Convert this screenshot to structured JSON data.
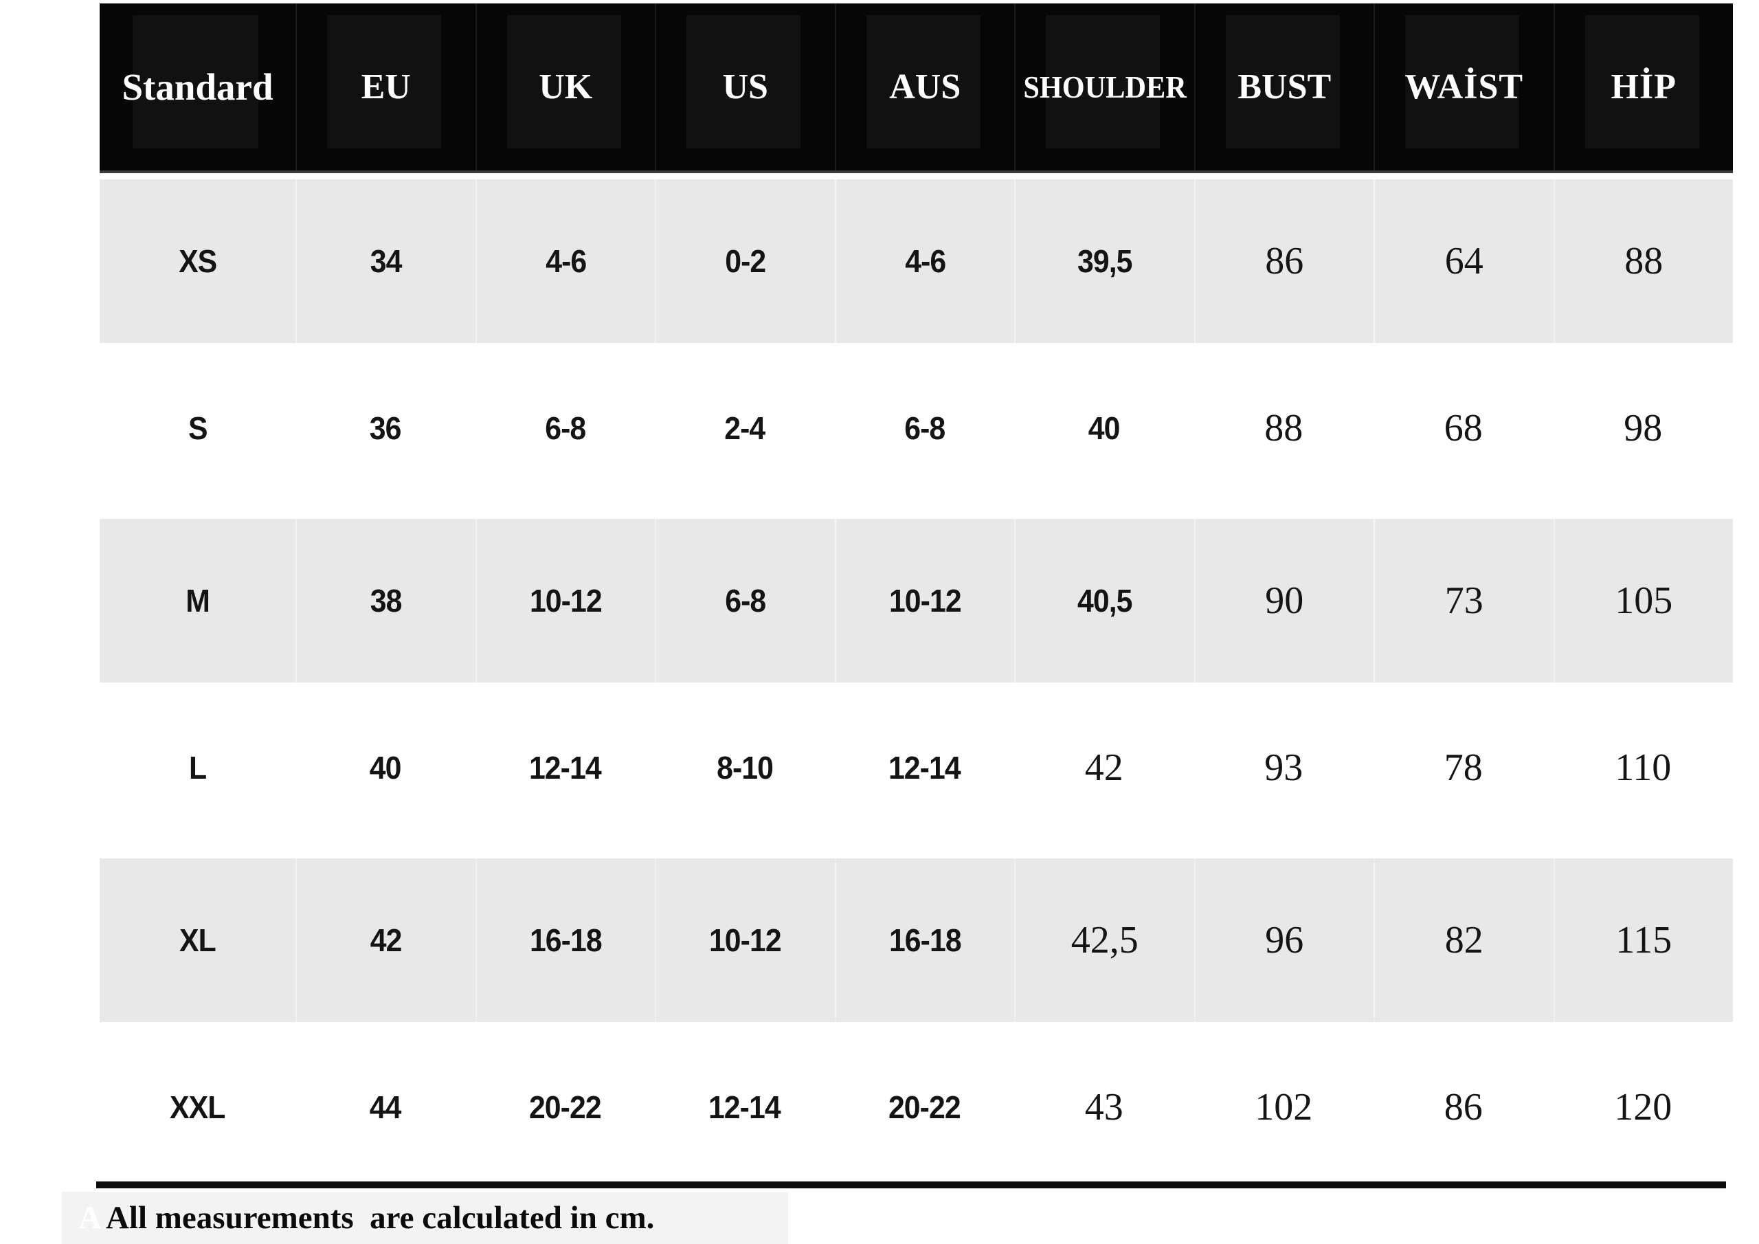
{
  "chart_data": {
    "type": "table",
    "columns": [
      "Standard",
      "EU",
      "UK",
      "US",
      "AUS",
      "SHOULDER",
      "BUST",
      "WAİST",
      "HİP"
    ],
    "rows": [
      [
        "XS",
        "34",
        "4-6",
        "0-2",
        "4-6",
        "39,5",
        "86",
        "64",
        "88"
      ],
      [
        "S",
        "36",
        "6-8",
        "2-4",
        "6-8",
        "40",
        "88",
        "68",
        "98"
      ],
      [
        "M",
        "38",
        "10-12",
        "6-8",
        "10-12",
        "40,5",
        "90",
        "73",
        "105"
      ],
      [
        "L",
        "40",
        "12-14",
        "8-10",
        "12-14",
        "42",
        "93",
        "78",
        "110"
      ],
      [
        "XL",
        "42",
        "16-18",
        "10-12",
        "16-18",
        "42,5",
        "96",
        "82",
        "115"
      ],
      [
        "XXL",
        "44",
        "20-22",
        "12-14",
        "20-22",
        "43",
        "102",
        "86",
        "120"
      ]
    ],
    "serif_from_col": [
      6,
      6,
      6,
      5,
      5,
      5
    ],
    "row_shaded": [
      true,
      false,
      true,
      false,
      true,
      false
    ],
    "footnote": "All measurements  are calculated in cm.",
    "footnote_ghost": "A",
    "layout_hints": {
      "header_style": "black band, white bold serif labels",
      "shaded_row_color": "#e8e8e8",
      "units": "cm"
    }
  },
  "colors": {
    "header_bg": "#060606",
    "header_text": "#ffffff",
    "row_shade": "#e8e8e8",
    "row_text": "#141414",
    "rule": "#0c0c0c",
    "footnote_bg": "#f3f3f3"
  }
}
